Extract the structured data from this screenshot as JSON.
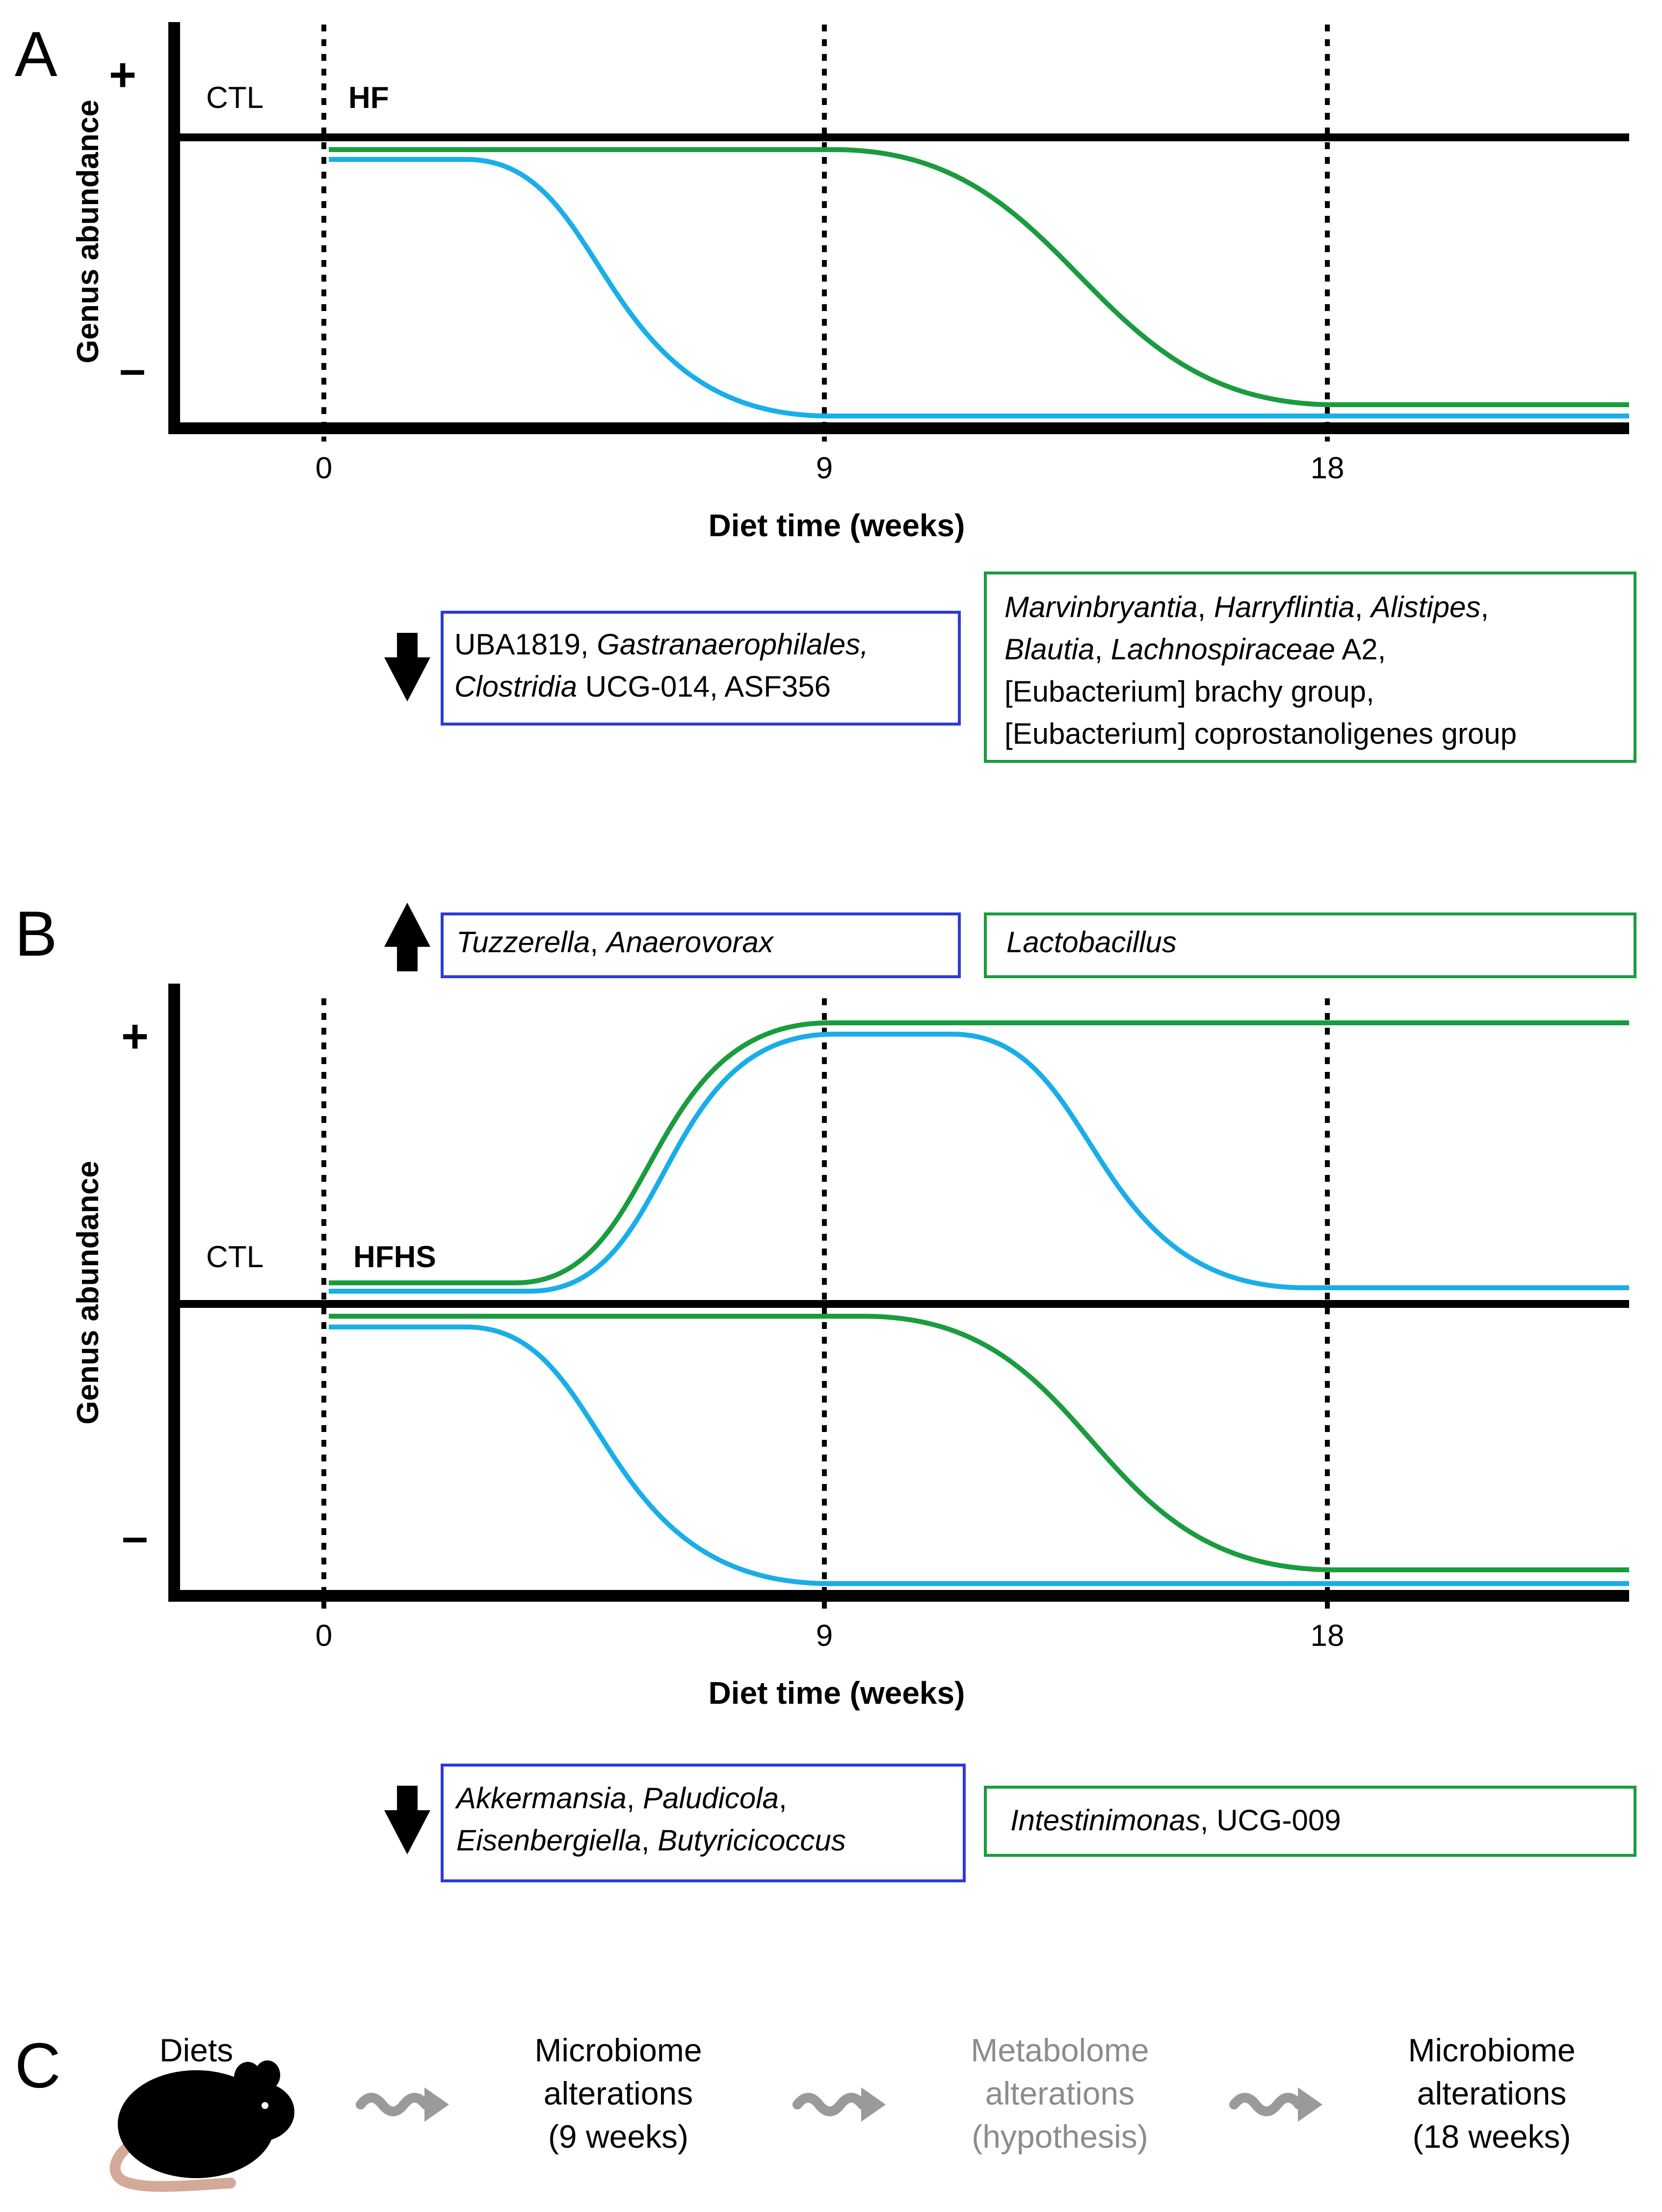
{
  "panels": {
    "A": {
      "letter": "A",
      "y_axis_label": "Genus abundance",
      "plus": "+",
      "minus": "–",
      "ctl_label": "CTL",
      "diet_label": "HF",
      "x_ticks": [
        "0",
        "9",
        "18"
      ],
      "x_axis_label": "Diet time (weeks)",
      "down_blue": [
        [
          {
            "text": "UBA1819, ",
            "italic": false
          },
          {
            "text": "Gastranaerophilales,",
            "italic": true
          }
        ],
        [
          {
            "text": "Clostridia",
            "italic": true
          },
          {
            "text": " UCG-014, ASF356",
            "italic": false
          }
        ]
      ],
      "down_green": [
        [
          {
            "text": "Marvinbryantia",
            "italic": true
          },
          {
            "text": ", ",
            "italic": false
          },
          {
            "text": "Harryflintia",
            "italic": true
          },
          {
            "text": ", ",
            "italic": false
          },
          {
            "text": "Alistipes",
            "italic": true
          },
          {
            "text": ",",
            "italic": false
          }
        ],
        [
          {
            "text": "Blautia",
            "italic": true
          },
          {
            "text": ", ",
            "italic": false
          },
          {
            "text": "Lachnospiraceae",
            "italic": true
          },
          {
            "text": " A2,",
            "italic": false
          }
        ],
        [
          {
            "text": "[Eubacterium] brachy group,",
            "italic": false
          }
        ],
        [
          {
            "text": "[Eubacterium] coprostanoligenes group",
            "italic": false
          }
        ]
      ]
    },
    "B": {
      "letter": "B",
      "y_axis_label": "Genus abundance",
      "plus": "+",
      "minus": "–",
      "ctl_label": "CTL",
      "diet_label": "HFHS",
      "x_ticks": [
        "0",
        "9",
        "18"
      ],
      "x_axis_label": "Diet time (weeks)",
      "up_blue": [
        [
          {
            "text": "Tuzzerella",
            "italic": true
          },
          {
            "text": ", ",
            "italic": false
          },
          {
            "text": "Anaerovorax",
            "italic": true
          }
        ]
      ],
      "up_green": [
        [
          {
            "text": "Lactobacillus",
            "italic": true
          }
        ]
      ],
      "down_blue": [
        [
          {
            "text": "Akkermansia",
            "italic": true
          },
          {
            "text": ", ",
            "italic": false
          },
          {
            "text": "Paludicola",
            "italic": true
          },
          {
            "text": ",",
            "italic": false
          }
        ],
        [
          {
            "text": "Eisenbergiella",
            "italic": true
          },
          {
            "text": ", ",
            "italic": false
          },
          {
            "text": "Butyricicoccus",
            "italic": true
          }
        ]
      ],
      "down_green": [
        [
          {
            "text": "Intestinimonas",
            "italic": true
          },
          {
            "text": ", UCG-009",
            "italic": false
          }
        ]
      ]
    },
    "C": {
      "letter": "C",
      "steps": [
        {
          "lines": [
            "Diets"
          ],
          "muted": false
        },
        {
          "lines": [
            "Microbiome",
            "alterations",
            "(9 weeks)"
          ],
          "muted": false
        },
        {
          "lines": [
            "Metabolome",
            "alterations",
            "(hypothesis)"
          ],
          "muted": true
        },
        {
          "lines": [
            "Microbiome",
            "alterations",
            "(18 weeks)"
          ],
          "muted": false
        }
      ]
    }
  },
  "colors": {
    "blue_curve": "#19aee8",
    "green_curve": "#1a9c3e",
    "blue_box": "#2d3bd4",
    "green_box": "#1a9c3e",
    "arrow_gray": "#9a9a9a",
    "mouse_tail": "#d4a99a"
  },
  "icons": [
    "down-arrow-icon",
    "up-arrow-icon",
    "squiggle-arrow-icon",
    "mouse-icon"
  ]
}
